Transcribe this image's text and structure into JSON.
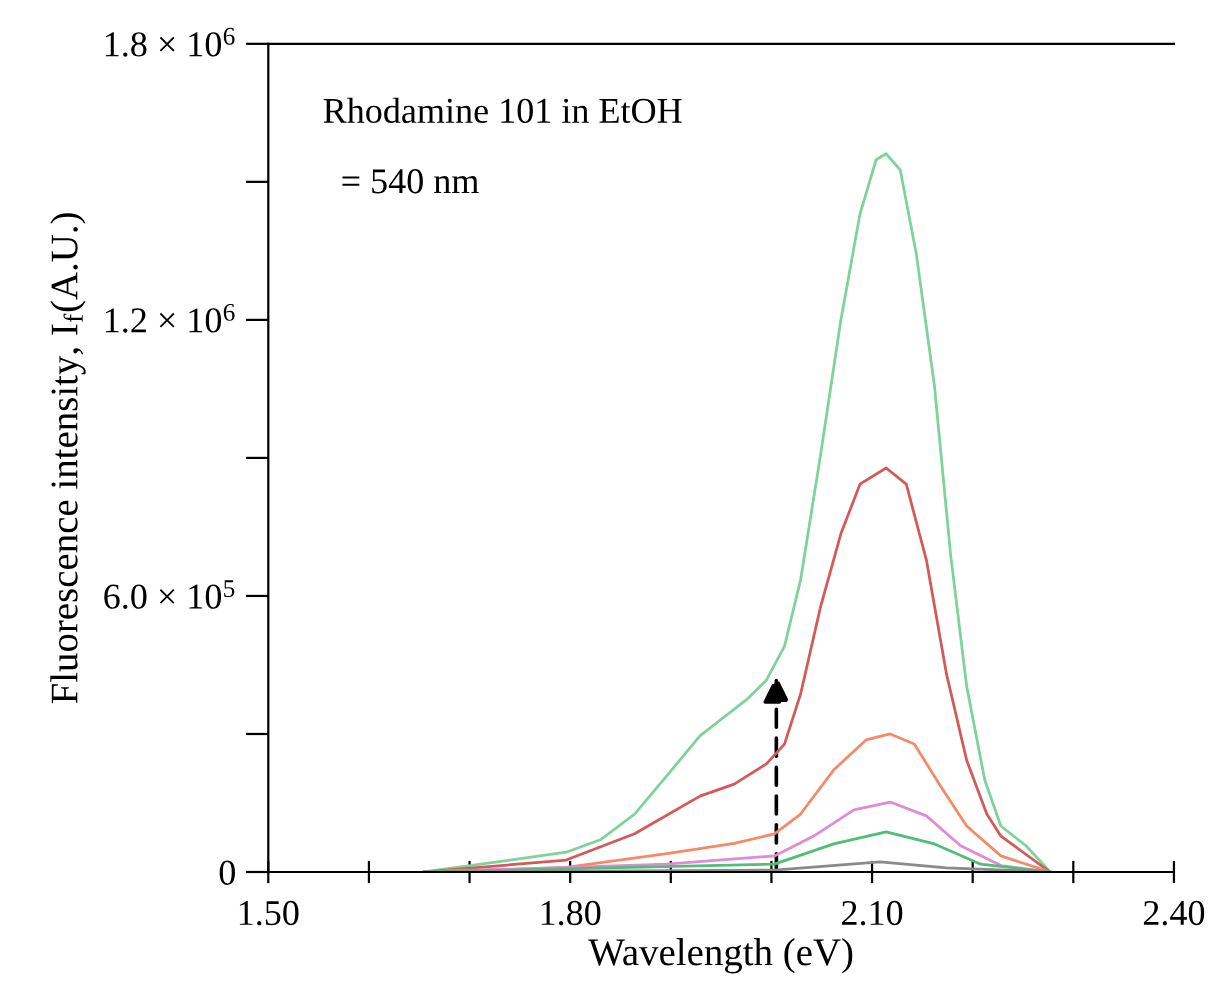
{
  "chart_data": {
    "type": "line",
    "xlabel": "Wavelength (eV)",
    "ylabel": "Fluorescence intensity, I$_{f}$(A.U.)",
    "annotations": [
      "Rhodamine 101 in EtOH",
      "  = 540 nm"
    ],
    "xlim": [
      1.5,
      2.4
    ],
    "xticks": [
      {
        "value": 1.5,
        "label": "1.50"
      },
      {
        "value": 1.6,
        "label": null
      },
      {
        "value": 1.7,
        "label": null
      },
      {
        "value": 1.8,
        "label": "1.80"
      },
      {
        "value": 1.9,
        "label": null
      },
      {
        "value": 2.0,
        "label": null
      },
      {
        "value": 2.1,
        "label": "2.10"
      },
      {
        "value": 2.2,
        "label": null
      },
      {
        "value": 2.3,
        "label": null
      },
      {
        "value": 2.4,
        "label": "2.40"
      }
    ],
    "ylim": [
      0,
      1800000
    ],
    "yticks": [
      0,
      {
        "value": 300000,
        "label": null
      },
      {
        "value": 600000,
        "label": "6.0 × 10$^{5}$"
      },
      {
        "value": 900000,
        "label": null
      },
      {
        "value": 1200000,
        "label": "1.2 × 10$^{6}$"
      },
      {
        "value": 1500000,
        "label": null
      },
      {
        "value": 1800000,
        "label": "1.8 × 10$^{6}$"
      }
    ],
    "grid": false,
    "legend": false,
    "series": [
      {
        "color": "#7fd39a",
        "x": [
          1.655,
          1.796,
          1.83,
          1.864,
          1.896,
          1.929,
          1.949,
          1.975,
          1.995,
          2.013,
          2.029,
          2.049,
          2.069,
          2.088,
          2.104,
          2.114,
          2.128,
          2.144,
          2.162,
          2.178,
          2.194,
          2.212,
          2.228,
          2.253,
          2.277
        ],
        "values": [
          0,
          43000,
          70000,
          126000,
          209000,
          296000,
          330000,
          374000,
          417000,
          491000,
          635000,
          909000,
          1200000,
          1430000,
          1548000,
          1561000,
          1526000,
          1343000,
          1057000,
          691000,
          404000,
          200000,
          100000,
          57000,
          0
        ]
      },
      {
        "color": "#d45a5a",
        "x": [
          1.655,
          1.796,
          1.864,
          1.929,
          1.963,
          1.995,
          2.013,
          2.029,
          2.049,
          2.069,
          2.088,
          2.114,
          2.134,
          2.154,
          2.174,
          2.194,
          2.214,
          2.228,
          2.277
        ],
        "values": [
          0,
          26000,
          83000,
          165000,
          191000,
          235000,
          278000,
          387000,
          578000,
          735000,
          843000,
          878000,
          843000,
          678000,
          430000,
          243000,
          126000,
          78000,
          0
        ]
      },
      {
        "color": "#f58a68",
        "x": [
          1.655,
          1.796,
          1.896,
          1.963,
          2.003,
          2.029,
          2.062,
          2.094,
          2.118,
          2.142,
          2.168,
          2.194,
          2.228,
          2.277
        ],
        "values": [
          0,
          10000,
          40000,
          62000,
          83000,
          126000,
          222000,
          287000,
          300000,
          278000,
          187000,
          100000,
          35000,
          0
        ]
      },
      {
        "color": "#e08ad8",
        "x": [
          1.655,
          1.896,
          2.003,
          2.042,
          2.082,
          2.118,
          2.154,
          2.188,
          2.228,
          2.277
        ],
        "values": [
          0,
          17000,
          35000,
          78000,
          135000,
          152000,
          122000,
          57000,
          14000,
          0
        ]
      },
      {
        "color": "#4fbf78",
        "x": [
          1.655,
          2.003,
          2.062,
          2.114,
          2.162,
          2.208,
          2.277
        ],
        "values": [
          0,
          17000,
          61000,
          87000,
          61000,
          17000,
          0
        ]
      },
      {
        "color": "#8a8a8a",
        "x": [
          1.655,
          2.003,
          2.108,
          2.174,
          2.277
        ],
        "values": [
          0,
          4000,
          22000,
          9000,
          0
        ]
      }
    ]
  }
}
